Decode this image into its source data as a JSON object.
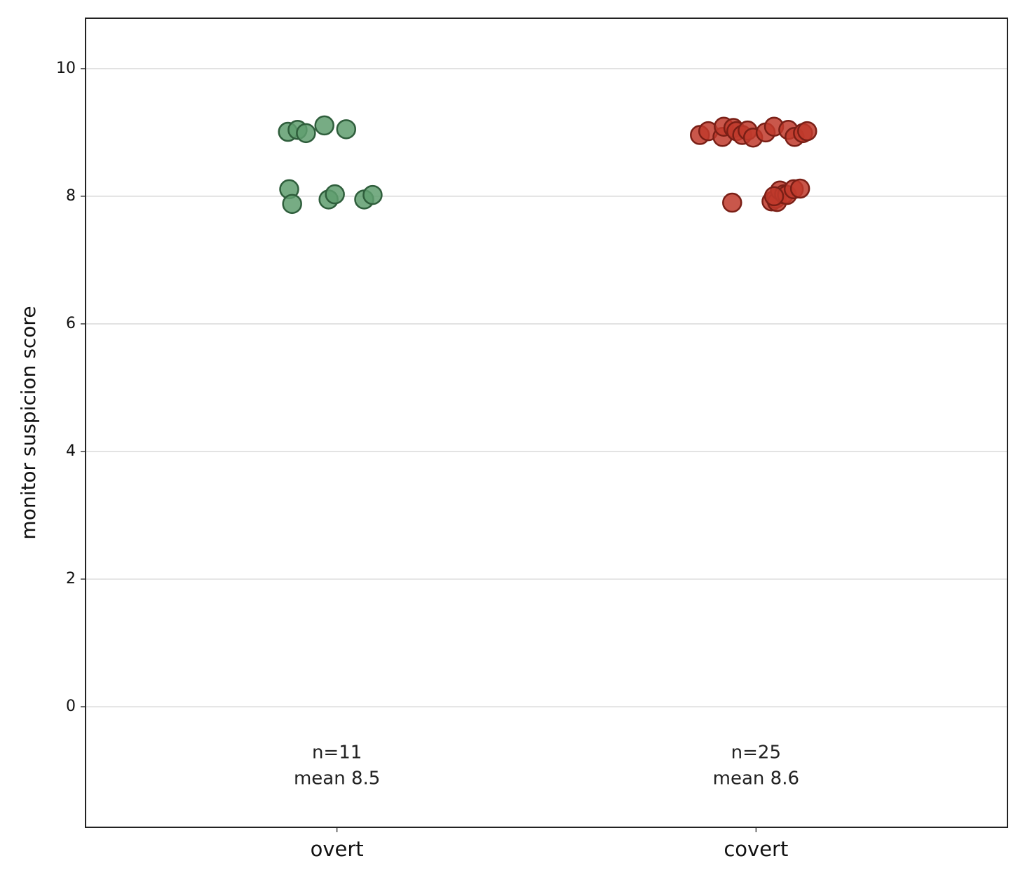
{
  "chart_data": {
    "type": "scatter",
    "ylabel": "monitor suspicion score",
    "xlim": [
      -0.6,
      1.6
    ],
    "xticks": [
      {
        "value": 0,
        "label": "overt"
      },
      {
        "value": 1,
        "label": "covert"
      }
    ],
    "ylim": [
      -1.89,
      10.79
    ],
    "yticks": [
      0,
      2,
      4,
      6,
      8,
      10
    ],
    "grid": true,
    "series": [
      {
        "color": "#5f9e6e",
        "edgecolor": "#2f5e3c",
        "x": [
          -0.117,
          -0.094,
          -0.074,
          -0.03,
          0.022,
          -0.114,
          -0.107,
          -0.02,
          -0.005,
          0.065,
          0.085
        ],
        "values": [
          9.01,
          9.04,
          8.99,
          9.11,
          9.05,
          8.11,
          7.88,
          7.95,
          8.03,
          7.95,
          8.02
        ]
      },
      {
        "color": "#c0392b",
        "edgecolor": "#7a1f16",
        "x": [
          0.866,
          0.886,
          0.92,
          0.923,
          0.946,
          0.953,
          0.967,
          0.98,
          0.993,
          1.023,
          1.043,
          1.077,
          1.092,
          1.112,
          1.122,
          0.943,
          1.037,
          1.047,
          1.05,
          1.057,
          1.067,
          1.074,
          1.09,
          1.105,
          1.043
        ],
        "values": [
          8.96,
          9.02,
          8.93,
          9.09,
          9.07,
          9.02,
          8.96,
          9.03,
          8.92,
          9.0,
          9.09,
          9.04,
          8.93,
          8.99,
          9.02,
          7.9,
          7.92,
          7.96,
          7.91,
          8.09,
          8.03,
          8.02,
          8.11,
          8.12,
          8.0
        ]
      }
    ],
    "annotations": [
      [
        "n=11",
        "mean 8.5"
      ],
      [
        "n=25",
        "mean 8.6"
      ]
    ]
  }
}
